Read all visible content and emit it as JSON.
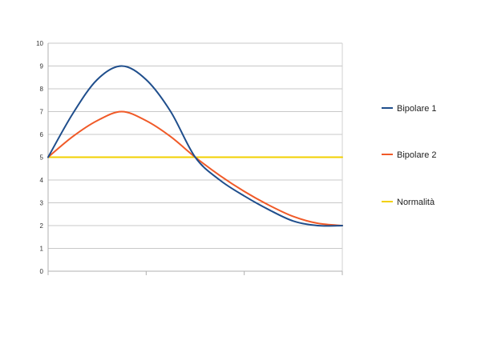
{
  "chart_data": {
    "type": "line",
    "title": "",
    "xlabel": "",
    "ylabel": "",
    "ylim": [
      0,
      10
    ],
    "yticks": [
      0,
      1,
      2,
      3,
      4,
      5,
      6,
      7,
      8,
      9,
      10
    ],
    "x_categories": 3,
    "grid": "horizontal",
    "legend_position": "right",
    "series": [
      {
        "name": "Bipolare 1",
        "color": "#1f4e8c",
        "x": [
          0,
          0.25,
          0.5,
          0.75,
          1.0,
          1.25,
          1.5,
          1.75,
          2.0,
          2.25,
          2.5,
          2.75,
          3.0
        ],
        "values": [
          5.0,
          6.9,
          8.4,
          9.0,
          8.4,
          7.0,
          5.0,
          4.0,
          3.3,
          2.7,
          2.2,
          2.0,
          2.0
        ]
      },
      {
        "name": "Bipolare 2",
        "color": "#f05a28",
        "x": [
          0,
          0.25,
          0.5,
          0.75,
          1.0,
          1.25,
          1.5,
          1.75,
          2.0,
          2.25,
          2.5,
          2.75,
          3.0
        ],
        "values": [
          5.0,
          5.9,
          6.6,
          7.0,
          6.6,
          5.9,
          5.0,
          4.2,
          3.5,
          2.9,
          2.4,
          2.1,
          2.0
        ]
      },
      {
        "name": "Normalità",
        "color": "#f2d000",
        "x": [
          0,
          3
        ],
        "values": [
          5,
          5
        ]
      }
    ]
  }
}
